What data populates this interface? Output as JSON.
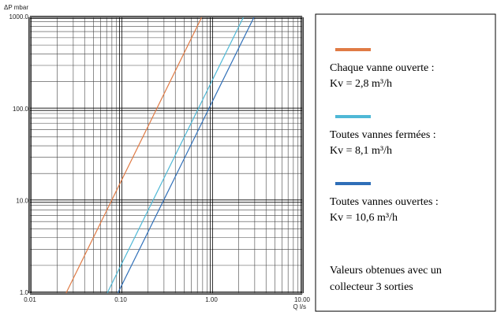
{
  "chart_data": {
    "type": "line",
    "x_label": "Q l/s",
    "y_label": "ΔP mbar",
    "log_x": true,
    "log_y": true,
    "grid": true,
    "minor_grid": true,
    "xlim": [
      0.01,
      10
    ],
    "ylim": [
      1,
      1000
    ],
    "xticks": [
      {
        "value": 0.01,
        "label": "0.01"
      },
      {
        "value": 0.1,
        "label": "0.10"
      },
      {
        "value": 1,
        "label": "1.00"
      },
      {
        "value": 10,
        "label": "10.00"
      }
    ],
    "yticks": [
      {
        "value": 1,
        "label": "1.0"
      },
      {
        "value": 10,
        "label": "10.0"
      },
      {
        "value": 100,
        "label": "100.0"
      },
      {
        "value": 1000,
        "label": "1000.0"
      }
    ],
    "legend_position": "right",
    "series": [
      {
        "name": "Chaque vanne ouverte :",
        "detail": "Kv = 2,8 m³/h",
        "color": "#e07b45",
        "x": [
          0.025,
          0.78
        ],
        "values": [
          1,
          1000
        ]
      },
      {
        "name": "Toutes vannes fermées :",
        "detail": "Kv = 8,1 m³/h",
        "color": "#4fb8d6",
        "x": [
          0.071,
          2.25
        ],
        "values": [
          1,
          1000
        ]
      },
      {
        "name": "Toutes vannes ouvertes :",
        "detail": "Kv = 10,6 m³/h",
        "color": "#2f6fb8",
        "x": [
          0.093,
          2.94
        ],
        "values": [
          1,
          1000
        ]
      }
    ],
    "note": [
      "Valeurs obtenues avec un",
      "collecteur 3 sorties"
    ]
  }
}
